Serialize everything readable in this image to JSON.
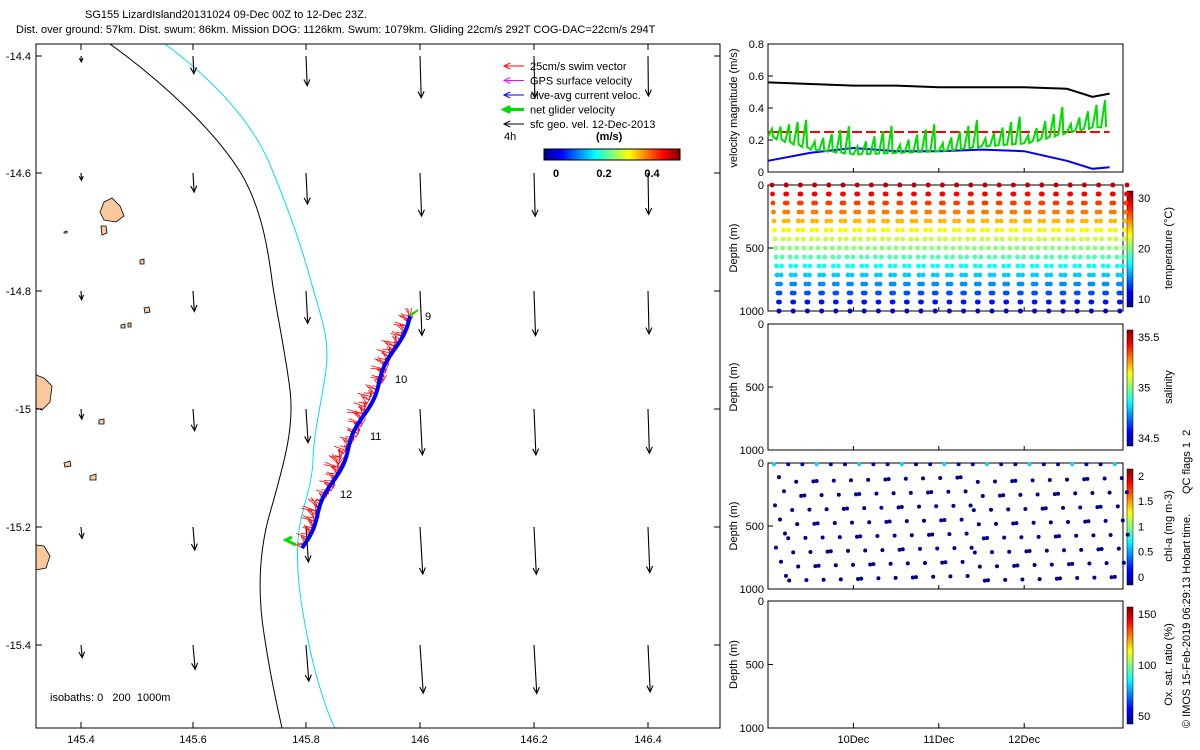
{
  "title": {
    "line1": "SG155 LizardIsland20131024 09-Dec 00Z to 12-Dec 23Z.",
    "line2": "Dist. over ground: 57km. Dist. swum: 86km. Mission DOG: 1126km. Swum: 1079km. Gliding 22cm/s 292T COG-DAC=22cm/s 294T"
  },
  "map": {
    "x_ticks": [
      "145.4",
      "145.6",
      "145.8",
      "146",
      "146.2",
      "146.4"
    ],
    "y_ticks": [
      "-14.4",
      "-14.6",
      "-14.8",
      "-15",
      "-15.2",
      "-15.4"
    ],
    "xlim": [
      145.33,
      146.58
    ],
    "ylim": [
      -15.54,
      -14.37
    ],
    "legend": [
      {
        "label": "25cm/s swim vector",
        "color": "#ff0000"
      },
      {
        "label": "GPS surface velocity",
        "color": "#ff00ff"
      },
      {
        "label": "dive-avg current veloc.",
        "color": "#0000ff"
      },
      {
        "label": "net glider velocity",
        "color": "#00dd00"
      },
      {
        "label": "sfc geo. vel. 12-Dec-2013",
        "color": "#000000"
      }
    ],
    "timestep_label": "4h",
    "colorbar_label": "(m/s)",
    "colorbar_ticks": [
      "0",
      "0.2",
      "0.4"
    ],
    "isobaths_label": "isobaths: 0   200  1000m",
    "day_labels": [
      "9",
      "10",
      "11",
      "12"
    ]
  },
  "colors": {
    "land_fill": "#f9c89c",
    "isobath_200": "#00e0ee",
    "isobath_1000": "#000000",
    "swim": "#ff0000",
    "current": "#0000ff",
    "net": "#00dd00"
  },
  "chart_data": [
    {
      "type": "line",
      "panel": "velocity magnitude",
      "ylabel": "velocity magnitude (m/s)",
      "ylim": [
        0,
        0.8
      ],
      "y_ticks": [
        "0",
        "0.2",
        "0.4",
        "0.6",
        "0.8"
      ],
      "x_days": [
        9.0,
        9.5,
        10.0,
        10.5,
        11.0,
        11.5,
        12.0,
        12.5,
        12.8,
        13.0
      ],
      "series": [
        {
          "color": "#000000",
          "values": [
            0.56,
            0.55,
            0.54,
            0.54,
            0.53,
            0.53,
            0.53,
            0.52,
            0.47,
            0.49
          ]
        },
        {
          "color": "#ff0000",
          "dashed": true,
          "values": [
            0.25,
            0.25,
            0.25,
            0.25,
            0.25,
            0.25,
            0.25,
            0.25,
            0.25,
            0.25
          ]
        },
        {
          "color": "#0000ff",
          "values": [
            0.07,
            0.12,
            0.15,
            0.13,
            0.13,
            0.14,
            0.13,
            0.07,
            0.02,
            0.03
          ]
        },
        {
          "color": "#00dd00",
          "values": [
            0.22,
            0.14,
            0.11,
            0.12,
            0.13,
            0.16,
            0.18,
            0.25,
            0.28,
            0.21
          ]
        }
      ]
    },
    {
      "type": "scatter",
      "panel": "temperature",
      "ylabel": "Depth (m)",
      "cbar_label": "temperature (°C)",
      "y_ticks": [
        "0",
        "500",
        "1000"
      ],
      "cbar_ticks": [
        "10",
        "20",
        "30"
      ],
      "depth_range": [
        0,
        1000
      ],
      "dive_count": 25,
      "surface_value": 30,
      "deep_value": 5
    },
    {
      "type": "scatter",
      "panel": "salinity",
      "ylabel": "Depth (m)",
      "cbar_label": "salinity",
      "y_ticks": [
        "0",
        "500",
        "1000"
      ],
      "cbar_ticks": [
        "34.5",
        "35",
        "35.5"
      ],
      "empty": true
    },
    {
      "type": "scatter",
      "panel": "chl-a",
      "ylabel": "Depth (m)",
      "cbar_label": "chl-a (mg m-3)",
      "y_ticks": [
        "0",
        "500",
        "1000"
      ],
      "cbar_ticks": [
        "0",
        "0.5",
        "1",
        "1.5",
        "2"
      ]
    },
    {
      "type": "scatter",
      "panel": "oxygen",
      "ylabel": "Depth (m)",
      "cbar_label": "Ox. sat. ratio (%)",
      "y_ticks": [
        "0",
        "500",
        "1000"
      ],
      "cbar_ticks": [
        "50",
        "100",
        "150"
      ],
      "x_ticks": [
        "10Dec",
        "11Dec",
        "12Dec"
      ],
      "empty": true
    }
  ],
  "qc_label": "QC flags 1  2",
  "footer": "© IMOS 15-Feb-2019 06:29:13 Hobart time."
}
